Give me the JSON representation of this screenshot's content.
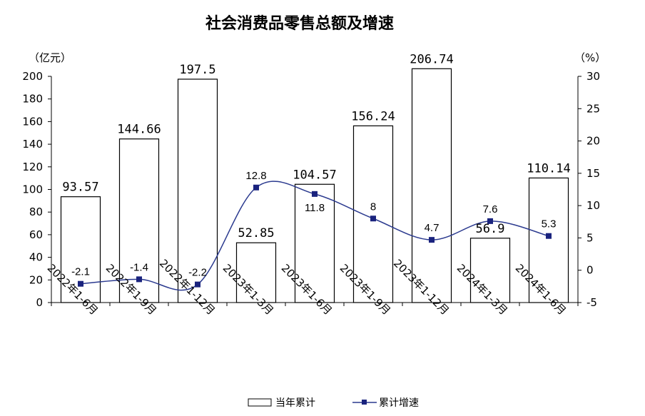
{
  "chart_data": {
    "type": "bar",
    "title": "社会消费品零售总额及增速",
    "y_left_unit": "（亿元）",
    "y_right_unit": "（%）",
    "categories": [
      "2022年1-6月",
      "2022年1-9月",
      "2022年1-12月",
      "2023年1-3月",
      "2023年1-6月",
      "2023年1-9月",
      "2023年1-12月",
      "2024年1-3月",
      "2024年1-6月"
    ],
    "series": [
      {
        "name": "当年累计",
        "type": "bar",
        "axis": "left",
        "values": [
          93.57,
          144.66,
          197.5,
          52.85,
          104.57,
          156.24,
          206.74,
          56.9,
          110.14
        ],
        "labels": [
          "93.57",
          "144.66",
          "197.5",
          "52.85",
          "104.57",
          "156.24",
          "206.74",
          "56.9",
          "110.14"
        ]
      },
      {
        "name": "累计增速",
        "type": "line",
        "axis": "right",
        "color": "#2b3a8f",
        "values": [
          -2.1,
          -1.4,
          -2.2,
          12.8,
          11.8,
          8,
          4.7,
          7.6,
          5.3
        ],
        "labels": [
          "-2.1",
          "-1.4",
          "-2.2",
          "12.8",
          "11.8",
          "8",
          "4.7",
          "7.6",
          "5.3"
        ]
      }
    ],
    "y_left": {
      "min": 0,
      "max": 200,
      "step": 20,
      "ticks": [
        "0",
        "20",
        "40",
        "60",
        "80",
        "100",
        "120",
        "140",
        "160",
        "180",
        "200"
      ]
    },
    "y_right": {
      "min": -5,
      "max": 30,
      "step": 5,
      "ticks": [
        "-5",
        "0",
        "5",
        "10",
        "15",
        "20",
        "25",
        "30"
      ]
    },
    "legend_position": "bottom"
  }
}
